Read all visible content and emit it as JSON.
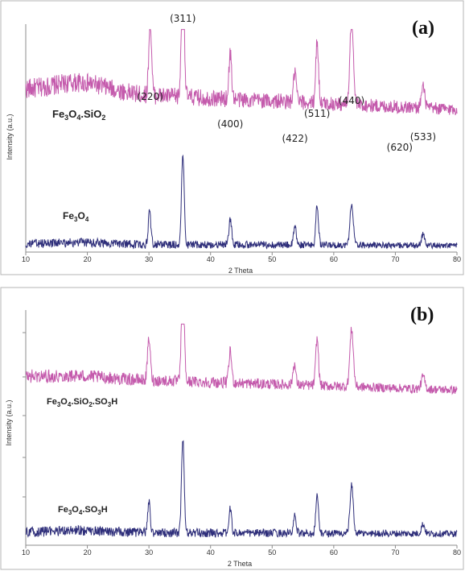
{
  "chart_data": [
    {
      "type": "line",
      "panel_label": "(a)",
      "xlabel": "2 Theta",
      "ylabel": "Intensity (a.u.)",
      "xlim": [
        10,
        80
      ],
      "x_ticks": [
        10,
        20,
        30,
        40,
        50,
        60,
        70,
        80
      ],
      "grid": false,
      "colors": {
        "upper": "#c45aac",
        "lower": "#2e2e7a"
      },
      "series": [
        {
          "name": "Fe3O4.SiO2",
          "label_html": "Fe<sub>3</sub>O<sub>4</sub>.SiO<sub>2</sub>",
          "color": "#c45aac",
          "peaks": [
            [
              30.2,
              0.55
            ],
            [
              35.5,
              1.0
            ],
            [
              43.2,
              0.33
            ],
            [
              53.7,
              0.22
            ],
            [
              57.3,
              0.45
            ],
            [
              62.9,
              0.62
            ],
            [
              74.5,
              0.15
            ]
          ],
          "shape": {
            "base": 0.58,
            "hump": 0.07,
            "noise": 0.075,
            "width": 0.32
          }
        },
        {
          "name": "Fe3O4",
          "label_html": "Fe<sub>3</sub>O<sub>4</sub>",
          "color": "#2e2e7a",
          "peaks": [
            [
              30.1,
              0.35
            ],
            [
              35.5,
              1.0
            ],
            [
              43.2,
              0.28
            ],
            [
              53.7,
              0.2
            ],
            [
              57.3,
              0.43
            ],
            [
              62.9,
              0.45
            ],
            [
              74.5,
              0.12
            ]
          ],
          "shape": {
            "base": 0.06,
            "hump": 0.02,
            "noise": 0.05,
            "width": 0.3
          }
        }
      ],
      "annotations": [
        {
          "text": "(220)",
          "x": 30.2
        },
        {
          "text": "(311)",
          "x": 35.5
        },
        {
          "text": "(400)",
          "x": 43.2
        },
        {
          "text": "(422)",
          "x": 53.7
        },
        {
          "text": "(511)",
          "x": 57.3
        },
        {
          "text": "(440)",
          "x": 62.9
        },
        {
          "text": "(620)",
          "x": 70.7
        },
        {
          "text": "(533)",
          "x": 74.5
        }
      ]
    },
    {
      "type": "line",
      "panel_label": "(b)",
      "xlabel": "2 Theta",
      "ylabel": "Intensity (a.u.)",
      "xlim": [
        10,
        80
      ],
      "x_ticks": [
        10,
        20,
        30,
        40,
        50,
        60,
        70,
        80
      ],
      "grid": false,
      "colors": {
        "upper": "#c45aac",
        "lower": "#2e2e7a"
      },
      "series": [
        {
          "name": "Fe3O4.SiO2.SO3H",
          "label_html": "Fe<sub>3</sub>O<sub>4</sub>.SiO<sub>2</sub>.SO<sub>3</sub>H",
          "color": "#c45aac",
          "peaks": [
            [
              30.0,
              0.4
            ],
            [
              35.5,
              1.0
            ],
            [
              43.2,
              0.3
            ],
            [
              53.6,
              0.2
            ],
            [
              57.3,
              0.45
            ],
            [
              62.9,
              0.55
            ],
            [
              74.5,
              0.12
            ]
          ],
          "shape": {
            "base": 0.52,
            "hump": 0.02,
            "noise": 0.065,
            "width": 0.32
          }
        },
        {
          "name": "Fe3O4.SO3H",
          "label_html": "Fe<sub>3</sub>O<sub>4</sub>.SO<sub>3</sub>H",
          "color": "#2e2e7a",
          "peaks": [
            [
              30.0,
              0.32
            ],
            [
              35.5,
              1.0
            ],
            [
              43.2,
              0.25
            ],
            [
              53.7,
              0.18
            ],
            [
              57.3,
              0.4
            ],
            [
              62.9,
              0.5
            ],
            [
              74.5,
              0.1
            ]
          ],
          "shape": {
            "base": 0.06,
            "hump": 0.02,
            "noise": 0.055,
            "width": 0.3
          }
        }
      ],
      "annotations": []
    }
  ]
}
